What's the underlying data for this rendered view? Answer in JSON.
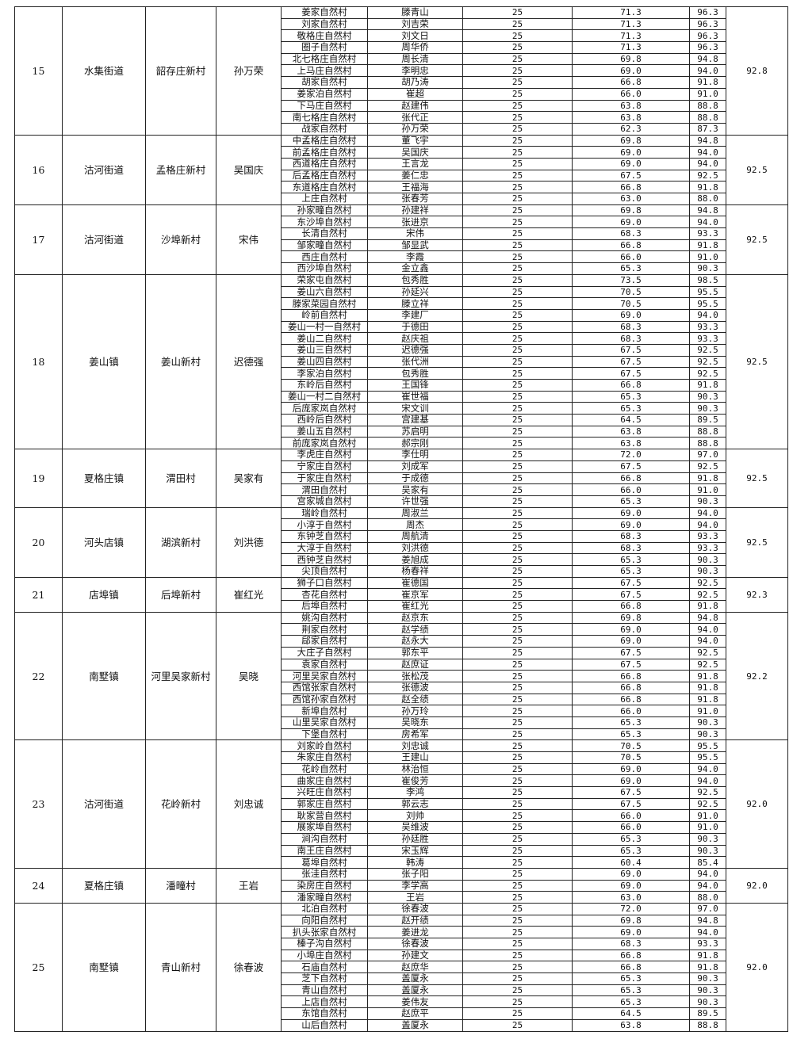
{
  "groups": [
    {
      "no": "15",
      "town": "水集街道",
      "village": "韶存庄新村",
      "secretary": "孙万荣",
      "final": "92.8",
      "rows": [
        [
          "姜家自然村",
          "滕青山",
          "25",
          "71.3",
          "96.3"
        ],
        [
          "刘家自然村",
          "刘吉荣",
          "25",
          "71.3",
          "96.3"
        ],
        [
          "敬格庄自然村",
          "刘文日",
          "25",
          "71.3",
          "96.3"
        ],
        [
          "圈子自然村",
          "周华侨",
          "25",
          "71.3",
          "96.3"
        ],
        [
          "北七格庄自然村",
          "周长清",
          "25",
          "69.8",
          "94.8"
        ],
        [
          "上马庄自然村",
          "李明忠",
          "25",
          "69.0",
          "94.0"
        ],
        [
          "胡家自然村",
          "胡乃涛",
          "25",
          "66.8",
          "91.8"
        ],
        [
          "姜家泊自然村",
          "崔超",
          "25",
          "66.0",
          "91.0"
        ],
        [
          "下马庄自然村",
          "赵建伟",
          "25",
          "63.8",
          "88.8"
        ],
        [
          "南七格庄自然村",
          "张代正",
          "25",
          "63.8",
          "88.8"
        ],
        [
          "战家自然村",
          "孙万荣",
          "25",
          "62.3",
          "87.3"
        ]
      ]
    },
    {
      "no": "16",
      "town": "沽河街道",
      "village": "孟格庄新村",
      "secretary": "吴国庆",
      "final": "92.5",
      "rows": [
        [
          "中孟格庄自然村",
          "董飞宇",
          "25",
          "69.8",
          "94.8"
        ],
        [
          "前孟格庄自然村",
          "吴国庆",
          "25",
          "69.0",
          "94.0"
        ],
        [
          "西道格庄自然村",
          "王言龙",
          "25",
          "69.0",
          "94.0"
        ],
        [
          "后孟格庄自然村",
          "姜仁忠",
          "25",
          "67.5",
          "92.5"
        ],
        [
          "东道格庄自然村",
          "王福海",
          "25",
          "66.8",
          "91.8"
        ],
        [
          "上庄自然村",
          "张春芳",
          "25",
          "63.0",
          "88.0"
        ]
      ]
    },
    {
      "no": "17",
      "town": "沽河街道",
      "village": "沙埠新村",
      "secretary": "宋伟",
      "final": "92.5",
      "rows": [
        [
          "孙家疃自然村",
          "孙建祥",
          "25",
          "69.8",
          "94.8"
        ],
        [
          "东沙埠自然村",
          "张进京",
          "25",
          "69.0",
          "94.0"
        ],
        [
          "长清自然村",
          "宋伟",
          "25",
          "68.3",
          "93.3"
        ],
        [
          "邹家疃自然村",
          "邹显武",
          "25",
          "66.8",
          "91.8"
        ],
        [
          "西庄自然村",
          "李霞",
          "25",
          "66.0",
          "91.0"
        ],
        [
          "西沙埠自然村",
          "金立鑫",
          "25",
          "65.3",
          "90.3"
        ]
      ]
    },
    {
      "no": "18",
      "town": "姜山镇",
      "village": "姜山新村",
      "secretary": "迟德强",
      "final": "92.5",
      "rows": [
        [
          "荣家屯自然村",
          "包秀胜",
          "25",
          "73.5",
          "98.5"
        ],
        [
          "姜山六自然村",
          "孙延兴",
          "25",
          "70.5",
          "95.5"
        ],
        [
          "滕家菜园自然村",
          "滕立祥",
          "25",
          "70.5",
          "95.5"
        ],
        [
          "岭前自然村",
          "李建厂",
          "25",
          "69.0",
          "94.0"
        ],
        [
          "姜山一村一自然村",
          "于德田",
          "25",
          "68.3",
          "93.3"
        ],
        [
          "姜山二自然村",
          "赵庆祖",
          "25",
          "68.3",
          "93.3"
        ],
        [
          "姜山三自然村",
          "迟德强",
          "25",
          "67.5",
          "92.5"
        ],
        [
          "姜山四自然村",
          "张代洲",
          "25",
          "67.5",
          "92.5"
        ],
        [
          "李家泊自然村",
          "包秀胜",
          "25",
          "67.5",
          "92.5"
        ],
        [
          "东岭后自然村",
          "王国锋",
          "25",
          "66.8",
          "91.8"
        ],
        [
          "姜山一村二自然村",
          "崔世福",
          "25",
          "65.3",
          "90.3"
        ],
        [
          "后庞家岚自然村",
          "宋文训",
          "25",
          "65.3",
          "90.3"
        ],
        [
          "西岭后自然村",
          "宫建基",
          "25",
          "64.5",
          "89.5"
        ],
        [
          "姜山五自然村",
          "苏启明",
          "25",
          "63.8",
          "88.8"
        ],
        [
          "前庞家岚自然村",
          "郝宗刚",
          "25",
          "63.8",
          "88.8"
        ]
      ]
    },
    {
      "no": "19",
      "town": "夏格庄镇",
      "village": "渭田村",
      "secretary": "吴家有",
      "final": "92.5",
      "rows": [
        [
          "李虎庄自然村",
          "李仕明",
          "25",
          "72.0",
          "97.0"
        ],
        [
          "宁家庄自然村",
          "刘成军",
          "25",
          "67.5",
          "92.5"
        ],
        [
          "于家庄自然村",
          "于成德",
          "25",
          "66.8",
          "91.8"
        ],
        [
          "渭田自然村",
          "吴家有",
          "25",
          "66.0",
          "91.0"
        ],
        [
          "宫家城自然村",
          "许世强",
          "25",
          "65.3",
          "90.3"
        ]
      ]
    },
    {
      "no": "20",
      "town": "河头店镇",
      "village": "湖滨新村",
      "secretary": "刘洪德",
      "final": "92.5",
      "rows": [
        [
          "瑞岭自然村",
          "周淑兰",
          "25",
          "69.0",
          "94.0"
        ],
        [
          "小淳于自然村",
          "周杰",
          "25",
          "69.0",
          "94.0"
        ],
        [
          "东钟芝自然村",
          "周航清",
          "25",
          "68.3",
          "93.3"
        ],
        [
          "大淳于自然村",
          "刘洪德",
          "25",
          "68.3",
          "93.3"
        ],
        [
          "西钟芝自然村",
          "姜旭成",
          "25",
          "65.3",
          "90.3"
        ],
        [
          "尖顶自然村",
          "杨春祥",
          "25",
          "65.3",
          "90.3"
        ]
      ]
    },
    {
      "no": "21",
      "town": "店埠镇",
      "village": "后埠新村",
      "secretary": "崔红光",
      "final": "92.3",
      "rows": [
        [
          "狮子口自然村",
          "崔德国",
          "25",
          "67.5",
          "92.5"
        ],
        [
          "杏花自然村",
          "崔京军",
          "25",
          "67.5",
          "92.5"
        ],
        [
          "后埠自然村",
          "崔红光",
          "25",
          "66.8",
          "91.8"
        ]
      ]
    },
    {
      "no": "22",
      "town": "南墅镇",
      "village": "河里吴家新村",
      "secretary": "吴晓",
      "final": "92.2",
      "rows": [
        [
          "姚沟自然村",
          "赵京东",
          "25",
          "69.8",
          "94.8"
        ],
        [
          "荆家自然村",
          "赵学绩",
          "25",
          "69.0",
          "94.0"
        ],
        [
          "郈家自然村",
          "赵永大",
          "25",
          "69.0",
          "94.0"
        ],
        [
          "大庄子自然村",
          "郭东平",
          "25",
          "67.5",
          "92.5"
        ],
        [
          "袁家自然村",
          "赵庶证",
          "25",
          "67.5",
          "92.5"
        ],
        [
          "河里吴家自然村",
          "张松茂",
          "25",
          "66.8",
          "91.8"
        ],
        [
          "西馆张家自然村",
          "张德波",
          "25",
          "66.8",
          "91.8"
        ],
        [
          "西馆孙家自然村",
          "赵全绩",
          "25",
          "66.8",
          "91.8"
        ],
        [
          "新埠自然村",
          "孙万玲",
          "25",
          "66.0",
          "91.0"
        ],
        [
          "山里吴家自然村",
          "吴晓东",
          "25",
          "65.3",
          "90.3"
        ],
        [
          "下堡自然村",
          "房希军",
          "25",
          "65.3",
          "90.3"
        ]
      ]
    },
    {
      "no": "23",
      "town": "沽河街道",
      "village": "花岭新村",
      "secretary": "刘忠诚",
      "final": "92.0",
      "rows": [
        [
          "刘家岭自然村",
          "刘忠诚",
          "25",
          "70.5",
          "95.5"
        ],
        [
          "朱家庄自然村",
          "王建山",
          "25",
          "70.5",
          "95.5"
        ],
        [
          "花岭自然村",
          "林治恒",
          "25",
          "69.0",
          "94.0"
        ],
        [
          "曲家庄自然村",
          "崔俊芳",
          "25",
          "69.0",
          "94.0"
        ],
        [
          "兴旺庄自然村",
          "李鸿",
          "25",
          "67.5",
          "92.5"
        ],
        [
          "郭家庄自然村",
          "郭云志",
          "25",
          "67.5",
          "92.5"
        ],
        [
          "耿家营自然村",
          "刘帅",
          "25",
          "66.0",
          "91.0"
        ],
        [
          "展家埠自然村",
          "吴维波",
          "25",
          "66.0",
          "91.0"
        ],
        [
          "涧沟自然村",
          "孙廷胜",
          "25",
          "65.3",
          "90.3"
        ],
        [
          "南王庄自然村",
          "宋玉辉",
          "25",
          "65.3",
          "90.3"
        ],
        [
          "葛埠自然村",
          "韩涛",
          "25",
          "60.4",
          "85.4"
        ]
      ]
    },
    {
      "no": "24",
      "town": "夏格庄镇",
      "village": "潘疃村",
      "secretary": "王岩",
      "final": "92.0",
      "rows": [
        [
          "张洼自然村",
          "张子阳",
          "25",
          "69.0",
          "94.0"
        ],
        [
          "染房庄自然村",
          "李学高",
          "25",
          "69.0",
          "94.0"
        ],
        [
          "潘家疃自然村",
          "王岩",
          "25",
          "63.0",
          "88.0"
        ]
      ]
    },
    {
      "no": "25",
      "town": "南墅镇",
      "village": "青山新村",
      "secretary": "徐春波",
      "final": "92.0",
      "rows": [
        [
          "北泊自然村",
          "徐春波",
          "25",
          "72.0",
          "97.0"
        ],
        [
          "向阳自然村",
          "赵开绩",
          "25",
          "69.8",
          "94.8"
        ],
        [
          "扒头张家自然村",
          "姜进龙",
          "25",
          "69.0",
          "94.0"
        ],
        [
          "榛子沟自然村",
          "徐春波",
          "25",
          "68.3",
          "93.3"
        ],
        [
          "小埠庄自然村",
          "孙建文",
          "25",
          "66.8",
          "91.8"
        ],
        [
          "石庙自然村",
          "赵庶华",
          "25",
          "66.8",
          "91.8"
        ],
        [
          "芝下自然村",
          "盖厦永",
          "25",
          "65.3",
          "90.3"
        ],
        [
          "青山自然村",
          "盖厦永",
          "25",
          "65.3",
          "90.3"
        ],
        [
          "上店自然村",
          "姜伟友",
          "25",
          "65.3",
          "90.3"
        ],
        [
          "东馆自然村",
          "赵庶平",
          "25",
          "64.5",
          "89.5"
        ],
        [
          "山后自然村",
          "盖厦永",
          "25",
          "63.8",
          "88.8"
        ]
      ]
    }
  ]
}
